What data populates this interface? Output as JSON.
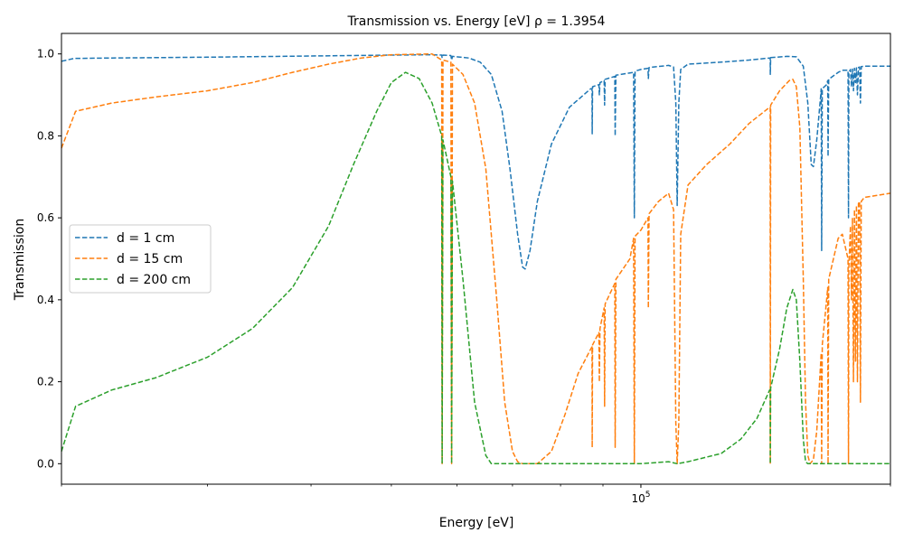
{
  "chart_data": {
    "type": "line",
    "title": "Transmission vs. Energy [eV] ρ = 1.3954",
    "xlabel": "Energy [eV]",
    "ylabel": "Transmission",
    "xscale": "log",
    "xlim": [
      20000,
      200000
    ],
    "ylim": [
      -0.05,
      1.05
    ],
    "grid": false,
    "legend_position": "center-left",
    "line_style": "dashed",
    "x_major_ticks": [
      {
        "value": 100000,
        "base": "10",
        "exponent": "5"
      }
    ],
    "x_minor_ticks": [
      20000,
      30000,
      40000,
      50000,
      60000,
      70000,
      80000,
      90000,
      200000
    ],
    "y_ticks": [
      {
        "value": 0.0,
        "label": "0.0"
      },
      {
        "value": 0.2,
        "label": "0.2"
      },
      {
        "value": 0.4,
        "label": "0.4"
      },
      {
        "value": 0.6,
        "label": "0.6"
      },
      {
        "value": 0.8,
        "label": "0.8"
      },
      {
        "value": 1.0,
        "label": "1.0"
      }
    ],
    "series": [
      {
        "name": "d = 1 cm",
        "color": "#1f77b4",
        "points": [
          [
            20000,
            0.982
          ],
          [
            20700,
            0.989
          ],
          [
            23000,
            0.99
          ],
          [
            30000,
            0.992
          ],
          [
            40000,
            0.995
          ],
          [
            50000,
            0.997
          ],
          [
            56000,
            0.998
          ],
          [
            57500,
            0.997
          ],
          [
            57580,
            0.99
          ],
          [
            57700,
            0.997
          ],
          [
            59000,
            0.996
          ],
          [
            59120,
            0.985
          ],
          [
            59250,
            0.994
          ],
          [
            62000,
            0.99
          ],
          [
            64000,
            0.98
          ],
          [
            66000,
            0.95
          ],
          [
            68000,
            0.86
          ],
          [
            69500,
            0.72
          ],
          [
            71000,
            0.56
          ],
          [
            72000,
            0.48
          ],
          [
            72500,
            0.475
          ],
          [
            73500,
            0.52
          ],
          [
            75000,
            0.64
          ],
          [
            78000,
            0.78
          ],
          [
            82000,
            0.87
          ],
          [
            87000,
            0.915
          ],
          [
            87300,
            0.915
          ],
          [
            87350,
            0.805
          ],
          [
            87450,
            0.92
          ],
          [
            89000,
            0.925
          ],
          [
            89100,
            0.9
          ],
          [
            89250,
            0.93
          ],
          [
            90300,
            0.935
          ],
          [
            90400,
            0.875
          ],
          [
            90550,
            0.938
          ],
          [
            93000,
            0.945
          ],
          [
            93100,
            0.8
          ],
          [
            93300,
            0.948
          ],
          [
            98000,
            0.955
          ],
          [
            98200,
            0.6
          ],
          [
            98400,
            0.958
          ],
          [
            100000,
            0.962
          ],
          [
            102000,
            0.965
          ],
          [
            102100,
            0.94
          ],
          [
            102300,
            0.967
          ],
          [
            108000,
            0.972
          ],
          [
            109500,
            0.968
          ],
          [
            110200,
            0.88
          ],
          [
            110600,
            0.63
          ],
          [
            111100,
            0.88
          ],
          [
            111700,
            0.962
          ],
          [
            114000,
            0.975
          ],
          [
            125000,
            0.98
          ],
          [
            135000,
            0.985
          ],
          [
            143000,
            0.99
          ],
          [
            143200,
            0.99
          ],
          [
            143250,
            0.95
          ],
          [
            143400,
            0.991
          ],
          [
            150000,
            0.994
          ],
          [
            154000,
            0.993
          ],
          [
            157000,
            0.97
          ],
          [
            159000,
            0.88
          ],
          [
            160500,
            0.73
          ],
          [
            161500,
            0.725
          ],
          [
            163000,
            0.79
          ],
          [
            164800,
            0.9
          ],
          [
            165000,
            0.915
          ],
          [
            165200,
            0.52
          ],
          [
            165500,
            0.915
          ],
          [
            167500,
            0.925
          ],
          [
            168000,
            0.935
          ],
          [
            168200,
            0.75
          ],
          [
            168500,
            0.938
          ],
          [
            173000,
            0.955
          ],
          [
            175000,
            0.96
          ],
          [
            177800,
            0.96
          ],
          [
            178000,
            0.6
          ],
          [
            178200,
            0.955
          ],
          [
            179000,
            0.962
          ],
          [
            179500,
            0.92
          ],
          [
            180000,
            0.963
          ],
          [
            180500,
            0.91
          ],
          [
            181000,
            0.965
          ],
          [
            181500,
            0.93
          ],
          [
            182000,
            0.966
          ],
          [
            182500,
            0.9
          ],
          [
            183000,
            0.967
          ],
          [
            183600,
            0.968
          ],
          [
            184000,
            0.88
          ],
          [
            184400,
            0.969
          ],
          [
            186000,
            0.97
          ],
          [
            200000,
            0.97
          ]
        ]
      },
      {
        "name": "d = 15 cm",
        "color": "#ff7f0e",
        "points": [
          [
            20000,
            0.77
          ],
          [
            20800,
            0.86
          ],
          [
            23000,
            0.88
          ],
          [
            26000,
            0.895
          ],
          [
            30000,
            0.91
          ],
          [
            34000,
            0.93
          ],
          [
            38000,
            0.955
          ],
          [
            42000,
            0.975
          ],
          [
            46000,
            0.99
          ],
          [
            50000,
            0.998
          ],
          [
            56000,
            1.0
          ],
          [
            57500,
            0.985
          ],
          [
            57580,
            0.0
          ],
          [
            57700,
            0.985
          ],
          [
            59000,
            0.98
          ],
          [
            59120,
            0.0
          ],
          [
            59250,
            0.975
          ],
          [
            61000,
            0.95
          ],
          [
            63000,
            0.88
          ],
          [
            65000,
            0.72
          ],
          [
            67000,
            0.4
          ],
          [
            68500,
            0.15
          ],
          [
            70000,
            0.03
          ],
          [
            71000,
            0.005
          ],
          [
            72000,
            0.0
          ],
          [
            75000,
            0.0
          ],
          [
            78000,
            0.03
          ],
          [
            81000,
            0.12
          ],
          [
            84000,
            0.22
          ],
          [
            87000,
            0.28
          ],
          [
            87300,
            0.285
          ],
          [
            87350,
            0.04
          ],
          [
            87450,
            0.29
          ],
          [
            89000,
            0.32
          ],
          [
            89100,
            0.2
          ],
          [
            89250,
            0.33
          ],
          [
            90300,
            0.38
          ],
          [
            90400,
            0.14
          ],
          [
            90550,
            0.39
          ],
          [
            93000,
            0.44
          ],
          [
            93100,
            0.04
          ],
          [
            93300,
            0.45
          ],
          [
            97000,
            0.5
          ],
          [
            98000,
            0.55
          ],
          [
            98200,
            0.0
          ],
          [
            98400,
            0.555
          ],
          [
            100000,
            0.57
          ],
          [
            102000,
            0.6
          ],
          [
            102100,
            0.38
          ],
          [
            102300,
            0.61
          ],
          [
            105000,
            0.64
          ],
          [
            108000,
            0.66
          ],
          [
            109500,
            0.62
          ],
          [
            110200,
            0.1
          ],
          [
            110600,
            0.0
          ],
          [
            111100,
            0.1
          ],
          [
            111700,
            0.56
          ],
          [
            114000,
            0.68
          ],
          [
            120000,
            0.73
          ],
          [
            128000,
            0.78
          ],
          [
            135000,
            0.83
          ],
          [
            143000,
            0.87
          ],
          [
            143200,
            0.87
          ],
          [
            143250,
            0.0
          ],
          [
            143400,
            0.875
          ],
          [
            147000,
            0.91
          ],
          [
            151000,
            0.935
          ],
          [
            152500,
            0.938
          ],
          [
            154000,
            0.92
          ],
          [
            155500,
            0.82
          ],
          [
            157000,
            0.45
          ],
          [
            158000,
            0.15
          ],
          [
            159000,
            0.02
          ],
          [
            160000,
            0.0
          ],
          [
            161500,
            0.01
          ],
          [
            163000,
            0.08
          ],
          [
            164800,
            0.25
          ],
          [
            165000,
            0.27
          ],
          [
            165200,
            0.0
          ],
          [
            165500,
            0.29
          ],
          [
            167500,
            0.4
          ],
          [
            168000,
            0.43
          ],
          [
            168200,
            0.0
          ],
          [
            168500,
            0.45
          ],
          [
            173000,
            0.55
          ],
          [
            175000,
            0.56
          ],
          [
            177800,
            0.5
          ],
          [
            178000,
            0.0
          ],
          [
            178200,
            0.48
          ],
          [
            179000,
            0.58
          ],
          [
            179500,
            0.4
          ],
          [
            180000,
            0.6
          ],
          [
            180500,
            0.2
          ],
          [
            181000,
            0.62
          ],
          [
            181500,
            0.25
          ],
          [
            182000,
            0.63
          ],
          [
            182500,
            0.2
          ],
          [
            183000,
            0.635
          ],
          [
            183600,
            0.64
          ],
          [
            184000,
            0.15
          ],
          [
            184400,
            0.64
          ],
          [
            186000,
            0.65
          ],
          [
            200000,
            0.66
          ]
        ]
      },
      {
        "name": "d = 200 cm",
        "color": "#2ca02c",
        "points": [
          [
            20000,
            0.03
          ],
          [
            20800,
            0.14
          ],
          [
            23000,
            0.18
          ],
          [
            26000,
            0.21
          ],
          [
            30000,
            0.26
          ],
          [
            34000,
            0.33
          ],
          [
            38000,
            0.43
          ],
          [
            42000,
            0.58
          ],
          [
            45000,
            0.73
          ],
          [
            48000,
            0.86
          ],
          [
            50000,
            0.93
          ],
          [
            52000,
            0.955
          ],
          [
            54000,
            0.94
          ],
          [
            56000,
            0.88
          ],
          [
            57500,
            0.8
          ],
          [
            57580,
            0.0
          ],
          [
            57700,
            0.79
          ],
          [
            59000,
            0.7
          ],
          [
            59120,
            0.0
          ],
          [
            59250,
            0.69
          ],
          [
            61000,
            0.45
          ],
          [
            63000,
            0.15
          ],
          [
            65000,
            0.02
          ],
          [
            66000,
            0.0
          ],
          [
            75000,
            0.0
          ],
          [
            90000,
            0.0
          ],
          [
            100000,
            0.0
          ],
          [
            108000,
            0.005
          ],
          [
            110600,
            0.0
          ],
          [
            114000,
            0.005
          ],
          [
            125000,
            0.025
          ],
          [
            132000,
            0.06
          ],
          [
            138000,
            0.11
          ],
          [
            143000,
            0.18
          ],
          [
            143200,
            0.18
          ],
          [
            143250,
            0.0
          ],
          [
            143400,
            0.185
          ],
          [
            147000,
            0.28
          ],
          [
            150000,
            0.38
          ],
          [
            152500,
            0.425
          ],
          [
            154000,
            0.4
          ],
          [
            155500,
            0.25
          ],
          [
            157000,
            0.06
          ],
          [
            158000,
            0.005
          ],
          [
            159000,
            0.0
          ],
          [
            200000,
            0.0
          ]
        ]
      }
    ]
  }
}
